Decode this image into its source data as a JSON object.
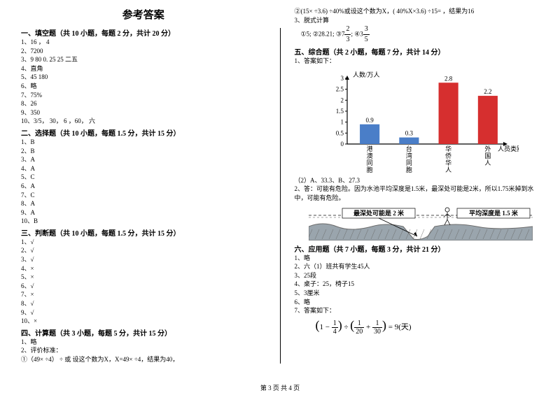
{
  "title": "参考答案",
  "footer": "第 3 页  共 4 页",
  "left": {
    "s1": {
      "header": "一、填空题（共 10 小题，每题 2 分，共计 20 分）",
      "items": [
        "1、16  ，  4",
        "2、7200",
        "3、9      80      0. 25      25      二五",
        "4、直角",
        "5、45      180",
        "6、略",
        "7、75%",
        "8、26",
        "9、350",
        "10、3/5，  30，  6 ，60，    六"
      ]
    },
    "s2": {
      "header": "二、选择题（共 10 小题，每题 1.5 分，共计 15 分）",
      "items": [
        "1、B",
        "2、B",
        "3、A",
        "4、A",
        "5、C",
        "6、A",
        "7、C",
        "8、A",
        "9、A",
        "10、B"
      ]
    },
    "s3": {
      "header": "三、判断题（共 10 小题，每题 1.5 分，共计 15 分）",
      "items": [
        "1、√",
        "2、√",
        "3、√",
        "4、×",
        "5、×",
        "6、√",
        "7、×",
        "8、√",
        "9、√",
        "10、×"
      ]
    },
    "s4": {
      "header": "四、计算题（共 3 小题，每题 5 分，共计 15 分）",
      "items": [
        "1、略",
        "2、评价标准：",
        "    ①（49×  ÷4）  ÷  或 设这个数为X，X=49×  ÷4，结果为40，"
      ]
    }
  },
  "right": {
    "top": [
      "    ②(15×  ÷3.6)  ÷40%或设这个数为X，( 40%X×3.6)  ÷15=  ，结果为16",
      "3、脱式计算"
    ],
    "circled": "    ①5; ②28.21; ③7 2/3 ; ④3 3/5",
    "s5_header": "五、综合题（共 2 小题，每题 7 分，共计 14 分）",
    "s5_pre": "1、答案如下：",
    "chart": {
      "type": "bar",
      "ylabel": "人数/万人",
      "xlabel": "人员类别",
      "categories": [
        "港澳同胞",
        "台湾同胞",
        "华侨华人",
        "外国人"
      ],
      "values": [
        0.9,
        0.3,
        2.8,
        2.2
      ],
      "value_labels": [
        "0.9",
        "0.3",
        "2.8",
        "2.2"
      ],
      "bar_colors": [
        "#4a7ec8",
        "#4a7ec8",
        "#d62f2f",
        "#d62f2f"
      ],
      "yticks": [
        "0",
        "0.5",
        "1",
        "1.5",
        "2",
        "2.5",
        "3"
      ],
      "ymax": 3,
      "axis_color": "#000000",
      "tick_color": "#000000",
      "label_fontsize": 9,
      "value_fontsize": 9,
      "bar_width_ratio": 0.5
    },
    "s5_after": [
      "（2）A、33.3、B、27.3",
      "2、答：可能有危险。因为水池平均深度是1.5米，最深处可能是2米，所以1.75米掉到水中，可能有危险。"
    ],
    "pool": {
      "deep_label": "最深处可能是 2 米",
      "avg_label": "平均深度是 1.5 米",
      "water_color": "#9aa5ad",
      "ground_color": "#6b6b6b",
      "line_color": "#4a4a4a"
    },
    "s6": {
      "header": "六、应用题（共 7 小题，每题 3 分，共计 21 分）",
      "items": [
        "1、略",
        "2、六（1）班共有学生45人",
        "3、25段",
        "4、桌子：25，椅子15",
        "5、3厘米",
        "6、略",
        "7、答案如下："
      ]
    },
    "formula_text": "(1 − 1/4) ÷ (1/20 + 1/30) = 9(天)"
  }
}
